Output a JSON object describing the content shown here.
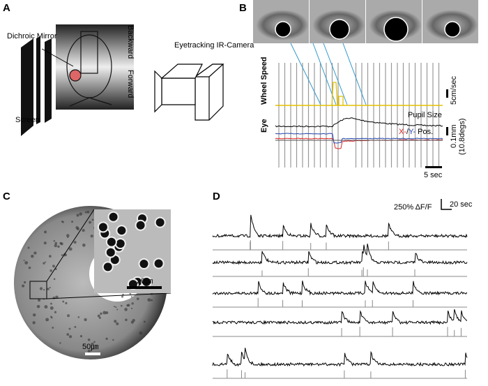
{
  "panels": {
    "a": {
      "label": "A",
      "dichroic": "Dichroic Mirror",
      "backward": "Backward",
      "forward": "Forward",
      "camera": "Eyetracking IR-Camera",
      "screen": "Screen"
    },
    "b": {
      "label": "B",
      "wheel_speed": "Wheel Speed",
      "eye": "Eye",
      "pupil_size": "Pupil Size",
      "pos_x": "X-",
      "pos_slash": "/",
      "pos_y": "Y-",
      "pos_rest": "Pos.",
      "speed_scale": "5cm/sec",
      "eye_scale": "0.1mm",
      "eye_scale_deg": "(10.8degs)",
      "time_scale": "5 sec"
    },
    "c": {
      "label": "C",
      "inset_scale": "20㎛",
      "scale": "50㎛"
    },
    "d": {
      "label": "D",
      "df_scale": "250% ΔF/F",
      "time_scale": "20 sec"
    }
  }
}
